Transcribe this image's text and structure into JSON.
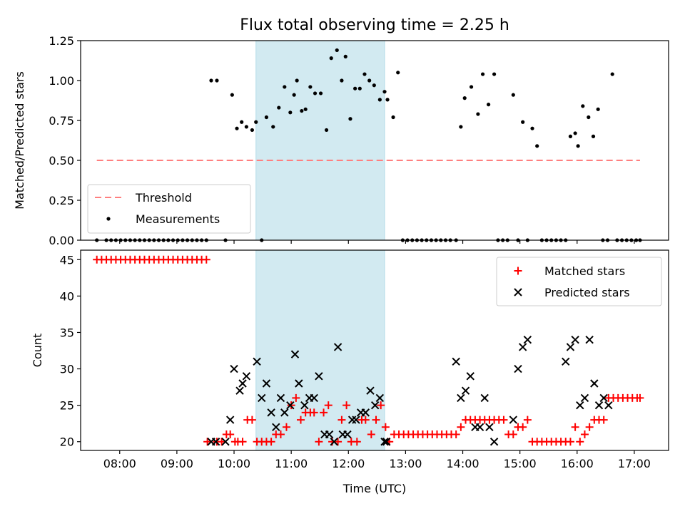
{
  "figure": {
    "title": "Flux total observing time = 2.25 h",
    "xlabel": "Time (UTC)"
  },
  "chart_data": [
    {
      "type": "scatter",
      "ylabel": "Matched/Predicted stars",
      "xlim": [
        "07:19",
        "17:36"
      ],
      "ylim": [
        0,
        1.25
      ],
      "x_ticks": [
        "08:00",
        "09:00",
        "10:00",
        "11:00",
        "12:00",
        "13:00",
        "14:00",
        "15:00",
        "16:00",
        "17:00"
      ],
      "y_ticks": [
        "0.00",
        "0.25",
        "0.50",
        "0.75",
        "1.00",
        "1.25"
      ],
      "grid": false,
      "legend_position": "lower-left",
      "highlight_span": {
        "start": "10:23",
        "end": "12:38",
        "color": "#add8e6"
      },
      "series": [
        {
          "name": "Threshold",
          "style": "dashed-line",
          "color": "#ff7f7f",
          "x": [
            "07:36",
            "17:06"
          ],
          "y": [
            0.5,
            0.5
          ]
        },
        {
          "name": "Measurements",
          "style": "dot",
          "color": "#000000",
          "x": [
            "07:36",
            "07:46",
            "07:51",
            "07:56",
            "08:01",
            "08:06",
            "08:11",
            "08:16",
            "08:21",
            "08:26",
            "08:31",
            "08:36",
            "08:41",
            "08:46",
            "08:51",
            "08:56",
            "09:01",
            "09:06",
            "09:11",
            "09:16",
            "09:21",
            "09:26",
            "09:31",
            "09:36",
            "09:42",
            "09:51",
            "09:58",
            "10:03",
            "10:08",
            "10:13",
            "10:19",
            "10:23",
            "10:29",
            "10:34",
            "10:41",
            "10:47",
            "10:53",
            "10:59",
            "11:03",
            "11:06",
            "11:11",
            "11:15",
            "11:20",
            "11:25",
            "11:31",
            "11:37",
            "11:42",
            "11:48",
            "11:53",
            "11:57",
            "12:02",
            "12:07",
            "12:12",
            "12:17",
            "12:22",
            "12:27",
            "12:33",
            "12:38",
            "12:41",
            "12:47",
            "12:52",
            "12:57",
            "13:02",
            "13:07",
            "13:12",
            "13:17",
            "13:22",
            "13:27",
            "13:32",
            "13:37",
            "13:42",
            "13:47",
            "13:53",
            "13:58",
            "14:02",
            "14:09",
            "14:16",
            "14:21",
            "14:27",
            "14:33",
            "14:37",
            "14:42",
            "14:47",
            "14:53",
            "14:58",
            "15:03",
            "15:08",
            "15:13",
            "15:18",
            "15:23",
            "15:28",
            "15:33",
            "15:38",
            "15:43",
            "15:48",
            "15:53",
            "15:58",
            "16:01",
            "16:06",
            "16:12",
            "16:17",
            "16:22",
            "16:27",
            "16:32",
            "16:37",
            "16:42",
            "16:47",
            "16:52",
            "16:57",
            "17:02",
            "17:06"
          ],
          "y": [
            0,
            0,
            0,
            0,
            0,
            0,
            0,
            0,
            0,
            0,
            0,
            0,
            0,
            0,
            0,
            0,
            0,
            0,
            0,
            0,
            0,
            0,
            0,
            1.0,
            1.0,
            0,
            0.91,
            0.7,
            0.74,
            0.71,
            0.69,
            0.74,
            0,
            0.77,
            0.71,
            0.83,
            0.96,
            0.8,
            0.91,
            1.0,
            0.81,
            0.82,
            0.96,
            0.92,
            0.92,
            0.69,
            1.14,
            1.19,
            1.0,
            1.15,
            0.76,
            0.95,
            0.95,
            1.04,
            1.0,
            0.97,
            0.88,
            0.93,
            0.88,
            0.77,
            1.05,
            0,
            0,
            0,
            0,
            0,
            0,
            0,
            0,
            0,
            0,
            0,
            0,
            0.71,
            0.89,
            0.96,
            0.79,
            1.04,
            0.85,
            1.04,
            0,
            0,
            0,
            0.91,
            0,
            0.74,
            0,
            0.7,
            0.59,
            0,
            0,
            0,
            0,
            0,
            0,
            0.65,
            0.67,
            0.59,
            0.84,
            0.77,
            0.65,
            0.82,
            0,
            0,
            1.04,
            0,
            0,
            0,
            0,
            0,
            0
          ]
        }
      ]
    },
    {
      "type": "scatter",
      "ylabel": "Count",
      "xlim": [
        "07:19",
        "17:36"
      ],
      "ylim": [
        18.8,
        46.3
      ],
      "x_ticks": [
        "08:00",
        "09:00",
        "10:00",
        "11:00",
        "12:00",
        "13:00",
        "14:00",
        "15:00",
        "16:00",
        "17:00"
      ],
      "y_ticks": [
        "20",
        "25",
        "30",
        "35",
        "40",
        "45"
      ],
      "grid": false,
      "legend_position": "upper-right",
      "highlight_span": {
        "start": "10:23",
        "end": "12:38",
        "color": "#add8e6"
      },
      "series": [
        {
          "name": "Matched stars",
          "marker": "plus",
          "color": "#ff0000",
          "x": [
            "07:36",
            "07:41",
            "07:46",
            "07:51",
            "07:56",
            "08:01",
            "08:06",
            "08:11",
            "08:16",
            "08:21",
            "08:26",
            "08:31",
            "08:36",
            "08:41",
            "08:46",
            "08:51",
            "08:56",
            "09:01",
            "09:06",
            "09:11",
            "09:16",
            "09:21",
            "09:26",
            "09:31",
            "09:32",
            "09:42",
            "09:47",
            "09:52",
            "09:56",
            "10:01",
            "10:04",
            "10:09",
            "10:14",
            "10:19",
            "10:24",
            "10:29",
            "10:34",
            "10:39",
            "10:44",
            "10:49",
            "10:55",
            "11:00",
            "11:05",
            "11:10",
            "11:15",
            "11:20",
            "11:24",
            "11:29",
            "11:34",
            "11:39",
            "11:43",
            "11:49",
            "11:53",
            "11:58",
            "12:03",
            "12:09",
            "12:14",
            "12:18",
            "12:24",
            "12:29",
            "12:34",
            "12:39",
            "12:43",
            "12:48",
            "12:53",
            "12:58",
            "13:03",
            "13:08",
            "13:13",
            "13:18",
            "13:23",
            "13:28",
            "13:33",
            "13:38",
            "13:43",
            "13:48",
            "13:53",
            "13:58",
            "14:03",
            "14:08",
            "14:13",
            "14:18",
            "14:23",
            "14:28",
            "14:33",
            "14:38",
            "14:43",
            "14:48",
            "14:53",
            "14:58",
            "15:03",
            "15:08",
            "15:13",
            "15:18",
            "15:23",
            "15:28",
            "15:33",
            "15:38",
            "15:43",
            "15:48",
            "15:53",
            "15:58",
            "16:03",
            "16:08",
            "16:13",
            "16:18",
            "16:23",
            "16:28",
            "16:33",
            "16:38",
            "16:43",
            "16:48",
            "16:53",
            "16:58",
            "17:03",
            "17:06"
          ],
          "y": [
            45,
            45,
            45,
            45,
            45,
            45,
            45,
            45,
            45,
            45,
            45,
            45,
            45,
            45,
            45,
            45,
            45,
            45,
            45,
            45,
            45,
            45,
            45,
            45,
            20,
            20,
            20,
            21,
            21,
            20,
            20,
            20,
            23,
            23,
            20,
            20,
            20,
            20,
            21,
            21,
            22,
            25,
            26,
            23,
            24,
            24,
            24,
            20,
            24,
            25,
            20,
            20,
            23,
            25,
            20,
            20,
            23,
            23,
            21,
            23,
            25,
            22,
            20,
            21,
            21,
            21,
            21,
            21,
            21,
            21,
            21,
            21,
            21,
            21,
            21,
            21,
            21,
            22,
            23,
            23,
            23,
            23,
            23,
            23,
            23,
            23,
            23,
            21,
            21,
            22,
            22,
            23,
            20,
            20,
            20,
            20,
            20,
            20,
            20,
            20,
            20,
            22,
            20,
            21,
            22,
            23,
            23,
            23,
            26,
            26,
            26,
            26,
            26,
            26,
            26,
            26
          ]
        },
        {
          "name": "Predicted stars",
          "marker": "x",
          "color": "#000000",
          "x": [
            "09:36",
            "09:41",
            "09:51",
            "09:56",
            "10:00",
            "10:06",
            "10:09",
            "10:13",
            "10:24",
            "10:29",
            "10:34",
            "10:39",
            "10:44",
            "10:49",
            "10:53",
            "10:59",
            "11:04",
            "11:08",
            "11:14",
            "11:19",
            "11:24",
            "11:29",
            "11:35",
            "11:40",
            "11:45",
            "11:49",
            "11:54",
            "11:59",
            "12:04",
            "12:08",
            "12:13",
            "12:18",
            "12:23",
            "12:28",
            "12:33",
            "12:38",
            "12:40",
            "13:53",
            "13:58",
            "14:03",
            "14:08",
            "14:13",
            "14:18",
            "14:23",
            "14:28",
            "14:33",
            "14:53",
            "14:58",
            "15:03",
            "15:08",
            "15:48",
            "15:53",
            "15:58",
            "16:03",
            "16:08",
            "16:13",
            "16:18",
            "16:23",
            "16:28",
            "16:33"
          ],
          "y": [
            20,
            20,
            20,
            23,
            30,
            27,
            28,
            29,
            31,
            26,
            28,
            24,
            22,
            26,
            24,
            25,
            32,
            28,
            25,
            26,
            26,
            29,
            21,
            21,
            20,
            33,
            21,
            21,
            23,
            23,
            24,
            24,
            27,
            25,
            26,
            20,
            20,
            31,
            26,
            27,
            29,
            22,
            22,
            26,
            22,
            20,
            23,
            30,
            33,
            34,
            31,
            33,
            34,
            25,
            26,
            34,
            28,
            25,
            26,
            25
          ]
        }
      ]
    }
  ]
}
